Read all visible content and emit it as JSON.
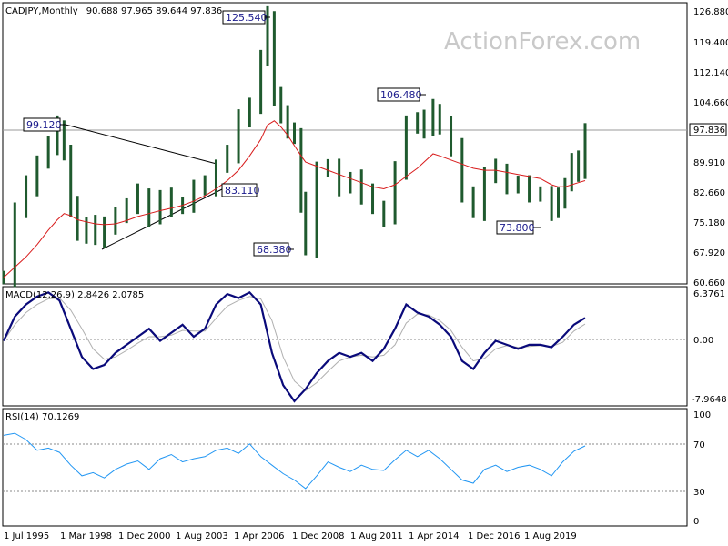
{
  "header": {
    "symbol": "CADJPY,Monthly",
    "ohlc": "90.688 97.965 89.644 97.836"
  },
  "watermark": "ActionForex.com",
  "price_panel": {
    "y_ticks": [
      "126.880",
      "119.400",
      "112.140",
      "104.660",
      "89.910",
      "82.660",
      "75.180",
      "67.920",
      "60.660"
    ],
    "current_price": "97.836",
    "annotations": [
      "125.540",
      "106.480",
      "99.120",
      "83.110",
      "68.380",
      "73.800"
    ]
  },
  "macd_panel": {
    "label": "MACD(12,26,9) 2.8426 2.0785",
    "y_ticks": [
      "6.3761",
      "0.00",
      "-7.9648"
    ]
  },
  "rsi_panel": {
    "label": "RSI(14) 70.1269",
    "y_ticks": [
      "100",
      "70",
      "30",
      "0"
    ]
  },
  "x_axis": {
    "labels": [
      "1 Jul 1995",
      "1 Mar 1998",
      "1 Dec 2000",
      "1 Aug 2003",
      "1 Apr 2006",
      "1 Dec 2008",
      "1 Aug 2011",
      "1 Apr 2014",
      "1 Dec 2016",
      "1 Aug 2019"
    ]
  },
  "colors": {
    "candles": "#1f5a2e",
    "ma": "#d81b1b",
    "macd": "#0a0a7a",
    "signal": "#b0b0b0",
    "rsi": "#2196f3",
    "grid": "#888888"
  },
  "chart_data": [
    {
      "type": "line",
      "title": "CADJPY,Monthly",
      "x": [
        1995.5,
        1996.0,
        1996.5,
        1997.0,
        1997.5,
        1997.9,
        1998.2,
        1998.5,
        1998.8,
        1999.2,
        1999.6,
        2000.0,
        2000.5,
        2001.0,
        2001.5,
        2002.0,
        2002.5,
        2003.0,
        2003.5,
        2004.0,
        2004.5,
        2005.0,
        2005.5,
        2006.0,
        2006.5,
        2007.0,
        2007.3,
        2007.6,
        2007.9,
        2008.2,
        2008.5,
        2008.8,
        2009.0,
        2009.5,
        2010.0,
        2010.5,
        2011.0,
        2011.5,
        2012.0,
        2012.5,
        2013.0,
        2013.5,
        2014.0,
        2014.3,
        2014.7,
        2015.0,
        2015.5,
        2016.0,
        2016.5,
        2017.0,
        2017.5,
        2018.0,
        2018.5,
        2019.0,
        2019.5,
        2020.0,
        2020.3,
        2020.6,
        2020.9,
        2021.2,
        2021.5
      ],
      "close": [
        62.0,
        78.0,
        84.0,
        90.0,
        94.0,
        98.5,
        92.0,
        79.0,
        72.5,
        75.0,
        71.5,
        74.0,
        77.5,
        79.0,
        82.0,
        76.5,
        81.0,
        79.0,
        80.0,
        83.5,
        84.0,
        89.0,
        92.0,
        100.0,
        104.0,
        115.0,
        125.0,
        106.0,
        101.0,
        98.0,
        96.0,
        80.0,
        69.0,
        88.5,
        88.0,
        84.0,
        86.0,
        82.0,
        79.0,
        76.5,
        88.0,
        98.5,
        100.5,
        98.0,
        102.5,
        99.0,
        93.0,
        82.5,
        78.0,
        86.5,
        88.0,
        84.5,
        84.0,
        82.5,
        82.0,
        78.0,
        81.0,
        84.5,
        90.0,
        87.5,
        97.836
      ],
      "series": [
        {
          "name": "",
          "values": [
            62.0,
            64.5,
            67.0,
            70.0,
            73.5,
            76.0,
            77.5,
            77.0,
            76.0,
            75.5,
            75.0,
            74.8,
            75.0,
            75.8,
            76.8,
            77.5,
            78.2,
            78.8,
            79.5,
            80.5,
            81.8,
            83.5,
            85.5,
            88.0,
            91.5,
            95.5,
            99.0,
            100.0,
            98.5,
            96.5,
            94.0,
            91.5,
            90.0,
            89.0,
            88.0,
            87.0,
            86.0,
            85.0,
            84.0,
            83.5,
            84.5,
            86.5,
            88.5,
            90.0,
            92.0,
            91.5,
            90.5,
            89.5,
            88.5,
            88.0,
            88.0,
            87.5,
            87.0,
            86.5,
            86.0,
            84.5,
            84.0,
            84.0,
            84.5,
            85.0,
            85.5
          ]
        }
      ],
      "ylim": [
        60.66,
        126.88
      ],
      "annotations": [
        {
          "label": "125.540",
          "x": 2007.3,
          "y": 125.54
        },
        {
          "label": "106.480",
          "x": 2014.5,
          "y": 106.48
        },
        {
          "label": "99.120",
          "x": 1997.9,
          "y": 99.12
        },
        {
          "label": "83.110",
          "x": 2004.5,
          "y": 83.11
        },
        {
          "label": "68.380",
          "x": 2008.9,
          "y": 68.38
        },
        {
          "label": "73.800",
          "x": 2020.0,
          "y": 73.8
        }
      ]
    },
    {
      "type": "line",
      "title": "MACD(12,26,9) 2.8426 2.0785",
      "x": [
        1995.5,
        1996.0,
        1996.5,
        1997.0,
        1997.5,
        1998.0,
        1998.5,
        1999.0,
        1999.5,
        2000.0,
        2000.5,
        2001.0,
        2001.5,
        2002.0,
        2002.5,
        2003.0,
        2003.5,
        2004.0,
        2004.5,
        2005.0,
        2005.5,
        2006.0,
        2006.5,
        2007.0,
        2007.5,
        2008.0,
        2008.5,
        2009.0,
        2009.5,
        2010.0,
        2010.5,
        2011.0,
        2011.5,
        2012.0,
        2012.5,
        2013.0,
        2013.5,
        2014.0,
        2014.5,
        2015.0,
        2015.5,
        2016.0,
        2016.5,
        2017.0,
        2017.5,
        2018.0,
        2018.5,
        2019.0,
        2019.5,
        2020.0,
        2020.5,
        2021.0,
        2021.5
      ],
      "series": [
        {
          "name": "",
          "values": [
            0.0,
            3.0,
            4.5,
            5.5,
            6.0,
            5.0,
            1.5,
            -2.0,
            -3.5,
            -3.0,
            -1.5,
            -0.5,
            0.5,
            1.5,
            0.0,
            1.0,
            2.0,
            0.5,
            1.5,
            4.5,
            5.8,
            5.3,
            6.0,
            4.5,
            -1.5,
            -5.5,
            -7.5,
            -6.0,
            -4.0,
            -2.5,
            -1.5,
            -2.0,
            -1.5,
            -2.5,
            -1.0,
            1.5,
            4.5,
            3.5,
            3.0,
            2.0,
            0.5,
            -2.5,
            -3.5,
            -1.5,
            0.0,
            -0.5,
            -1.0,
            -0.5,
            -0.5,
            -0.8,
            0.5,
            2.0,
            2.8426
          ]
        },
        {
          "name": "",
          "values": [
            0.0,
            2.0,
            3.5,
            4.5,
            5.2,
            5.3,
            3.8,
            1.5,
            -1.0,
            -2.3,
            -2.0,
            -1.2,
            -0.3,
            0.5,
            0.5,
            0.7,
            1.3,
            1.2,
            1.2,
            2.8,
            4.3,
            5.0,
            5.5,
            5.2,
            2.5,
            -2.0,
            -5.0,
            -6.2,
            -5.2,
            -3.8,
            -2.5,
            -2.0,
            -1.8,
            -2.0,
            -1.8,
            -0.5,
            2.2,
            3.3,
            3.2,
            2.5,
            1.3,
            -0.8,
            -2.5,
            -2.2,
            -1.0,
            -0.6,
            -0.8,
            -0.7,
            -0.6,
            -0.7,
            -0.2,
            1.2,
            2.0785
          ]
        }
      ],
      "ylim": [
        -7.9648,
        6.3761
      ]
    },
    {
      "type": "line",
      "title": "RSI(14) 70.1269",
      "x": [
        1995.5,
        1996.0,
        1996.5,
        1997.0,
        1997.5,
        1998.0,
        1998.5,
        1999.0,
        1999.5,
        2000.0,
        2000.5,
        2001.0,
        2001.5,
        2002.0,
        2002.5,
        2003.0,
        2003.5,
        2004.0,
        2004.5,
        2005.0,
        2005.5,
        2006.0,
        2006.5,
        2007.0,
        2007.5,
        2008.0,
        2008.5,
        2009.0,
        2009.5,
        2010.0,
        2010.5,
        2011.0,
        2011.5,
        2012.0,
        2012.5,
        2013.0,
        2013.5,
        2014.0,
        2014.5,
        2015.0,
        2015.5,
        2016.0,
        2016.5,
        2017.0,
        2017.5,
        2018.0,
        2018.5,
        2019.0,
        2019.5,
        2020.0,
        2020.5,
        2021.0,
        2021.5
      ],
      "series": [
        {
          "name": "",
          "values": [
            80,
            82,
            76,
            66,
            68,
            64,
            52,
            42,
            45,
            40,
            48,
            53,
            56,
            48,
            58,
            62,
            55,
            58,
            60,
            66,
            68,
            63,
            72,
            60,
            52,
            44,
            38,
            30,
            42,
            55,
            50,
            46,
            52,
            48,
            47,
            57,
            66,
            60,
            66,
            58,
            48,
            38,
            35,
            48,
            52,
            46,
            50,
            52,
            48,
            42,
            55,
            65,
            70.1269
          ]
        }
      ],
      "ylim": [
        0,
        100
      ]
    }
  ]
}
